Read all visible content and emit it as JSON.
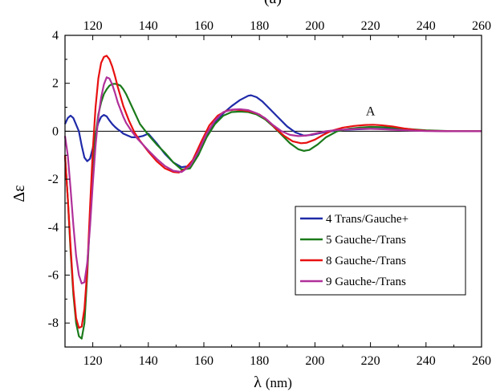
{
  "chart_data": {
    "type": "line",
    "panel_label": "(a)",
    "xlabel_symbol": "λ",
    "xlabel_unit": "(nm)",
    "ylabel": "Δε",
    "xlim": [
      110,
      260
    ],
    "ylim": [
      -9,
      4
    ],
    "xticks": [
      120,
      140,
      160,
      180,
      200,
      220,
      240,
      260
    ],
    "yticks": [
      4,
      2,
      0,
      -2,
      -4,
      -6,
      -8
    ],
    "ytick_labels": [
      "4",
      "2",
      "0",
      "-2",
      "-4",
      "-6",
      "-8"
    ],
    "zero_line": true,
    "top_axis_ticks": true,
    "grid": false,
    "legend_position": "center-right",
    "annotation": {
      "text": "A",
      "x": 220,
      "y": 0.6
    },
    "series": [
      {
        "name": "4 Trans/Gauche+",
        "color": "#1f2aa8",
        "x": [
          110,
          111,
          112,
          113,
          115,
          116,
          117,
          118,
          119,
          120,
          121,
          122,
          123,
          124,
          125,
          126,
          127,
          128,
          129,
          130,
          131,
          132,
          134,
          136,
          138,
          140,
          143,
          146,
          149,
          152,
          155,
          158,
          161,
          164,
          167,
          170,
          173,
          176,
          177,
          179,
          181,
          184,
          187,
          190,
          193,
          196,
          199,
          203,
          207,
          211,
          215,
          220,
          225,
          230,
          235,
          240,
          250,
          260
        ],
        "y": [
          0.3,
          0.55,
          0.65,
          0.55,
          0.0,
          -0.6,
          -1.1,
          -1.25,
          -1.15,
          -0.7,
          -0.1,
          0.35,
          0.6,
          0.68,
          0.62,
          0.45,
          0.3,
          0.18,
          0.08,
          0.0,
          -0.1,
          -0.15,
          -0.25,
          -0.25,
          -0.2,
          -0.1,
          -0.5,
          -0.95,
          -1.3,
          -1.5,
          -1.45,
          -0.95,
          -0.2,
          0.35,
          0.75,
          1.05,
          1.3,
          1.48,
          1.5,
          1.42,
          1.25,
          0.9,
          0.55,
          0.2,
          -0.05,
          -0.18,
          -0.15,
          -0.05,
          0.02,
          0.06,
          0.08,
          0.1,
          0.1,
          0.08,
          0.05,
          0.02,
          0.0,
          0.0
        ]
      },
      {
        "name": "5 Gauche-/Trans",
        "color": "#1b7a1b",
        "x": [
          110,
          111,
          112,
          113,
          114,
          115,
          116,
          117,
          118,
          119,
          120,
          121,
          122,
          123,
          124,
          125,
          126,
          127,
          128,
          129,
          130,
          131,
          132,
          133,
          135,
          137,
          140,
          143,
          146,
          149,
          152,
          155,
          158,
          161,
          164,
          167,
          170,
          173,
          176,
          179,
          182,
          185,
          188,
          191,
          194,
          196,
          198,
          201,
          204,
          208,
          212,
          216,
          220,
          225,
          230,
          235,
          240,
          250,
          260
        ],
        "y": [
          -1.0,
          -2.8,
          -5.0,
          -6.8,
          -8.0,
          -8.55,
          -8.65,
          -8.0,
          -6.0,
          -3.6,
          -1.6,
          -0.2,
          0.7,
          1.2,
          1.55,
          1.75,
          1.9,
          1.97,
          1.98,
          1.95,
          1.9,
          1.75,
          1.55,
          1.3,
          0.8,
          0.3,
          -0.15,
          -0.55,
          -0.9,
          -1.3,
          -1.6,
          -1.55,
          -1.0,
          -0.25,
          0.3,
          0.65,
          0.8,
          0.82,
          0.8,
          0.7,
          0.5,
          0.2,
          -0.15,
          -0.5,
          -0.75,
          -0.82,
          -0.78,
          -0.55,
          -0.25,
          0.0,
          0.1,
          0.15,
          0.18,
          0.17,
          0.13,
          0.08,
          0.04,
          0.0,
          0.0
        ]
      },
      {
        "name": "8 Gauche-/Trans",
        "color": "#e81010",
        "x": [
          110,
          111,
          112,
          113,
          114,
          115,
          116,
          117,
          118,
          119,
          120,
          121,
          122,
          123,
          124,
          125,
          126,
          127,
          128,
          129,
          130,
          131,
          133,
          135,
          137,
          140,
          143,
          146,
          149,
          151,
          153,
          156,
          159,
          162,
          165,
          168,
          171,
          174,
          177,
          180,
          183,
          186,
          189,
          192,
          195,
          197,
          200,
          203,
          206,
          210,
          214,
          218,
          221,
          224,
          228,
          232,
          236,
          240,
          250,
          260
        ],
        "y": [
          -1.0,
          -2.8,
          -4.8,
          -6.6,
          -7.8,
          -8.2,
          -8.15,
          -7.4,
          -5.8,
          -3.2,
          -0.8,
          1.0,
          2.2,
          2.85,
          3.1,
          3.15,
          3.0,
          2.7,
          2.3,
          1.85,
          1.45,
          1.05,
          0.45,
          -0.05,
          -0.4,
          -0.85,
          -1.25,
          -1.55,
          -1.7,
          -1.72,
          -1.6,
          -1.2,
          -0.45,
          0.25,
          0.65,
          0.85,
          0.9,
          0.88,
          0.82,
          0.7,
          0.45,
          0.1,
          -0.2,
          -0.42,
          -0.5,
          -0.48,
          -0.35,
          -0.15,
          0.02,
          0.15,
          0.22,
          0.26,
          0.27,
          0.25,
          0.2,
          0.12,
          0.06,
          0.02,
          0.0,
          0.0
        ]
      },
      {
        "name": "9 Gauche-/Trans",
        "color": "#b0309a",
        "x": [
          110,
          111,
          112,
          113,
          114,
          115,
          116,
          117,
          118,
          119,
          120,
          121,
          122,
          123,
          124,
          125,
          126,
          127,
          128,
          129,
          130,
          131,
          132,
          134,
          136,
          138,
          140,
          143,
          146,
          149,
          152,
          155,
          158,
          161,
          164,
          167,
          170,
          173,
          176,
          179,
          182,
          185,
          188,
          191,
          194,
          197,
          200,
          204,
          208,
          212,
          216,
          220,
          225,
          230,
          235,
          240,
          250,
          260
        ],
        "y": [
          -0.2,
          -1.0,
          -2.4,
          -3.9,
          -5.2,
          -6.0,
          -6.35,
          -6.3,
          -5.5,
          -4.0,
          -2.2,
          -0.6,
          0.6,
          1.4,
          1.95,
          2.25,
          2.2,
          1.95,
          1.6,
          1.2,
          0.9,
          0.6,
          0.35,
          0.0,
          -0.3,
          -0.55,
          -0.8,
          -1.15,
          -1.45,
          -1.65,
          -1.7,
          -1.45,
          -0.85,
          -0.1,
          0.45,
          0.8,
          0.9,
          0.92,
          0.88,
          0.75,
          0.55,
          0.25,
          0.0,
          -0.15,
          -0.2,
          -0.18,
          -0.1,
          0.0,
          0.05,
          0.08,
          0.1,
          0.1,
          0.08,
          0.05,
          0.03,
          0.01,
          0.0,
          0.0
        ]
      }
    ]
  }
}
